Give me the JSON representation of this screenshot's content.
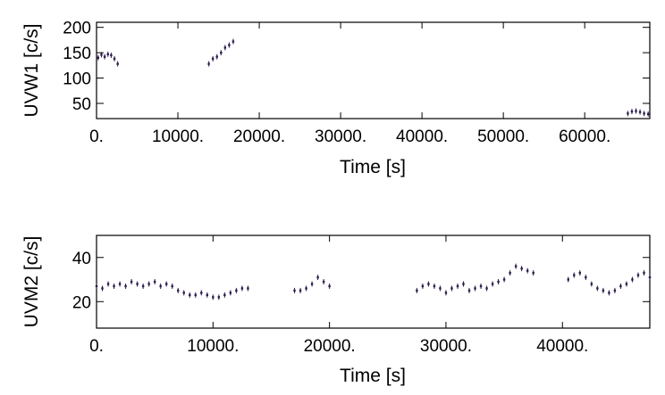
{
  "chart_data": [
    {
      "type": "scatter",
      "title": "",
      "xlabel": "Time [s]",
      "ylabel": "UVW1 [c/s]",
      "xlim": [
        0,
        68000
      ],
      "ylim": [
        20,
        210
      ],
      "grid": false,
      "x_ticks": [
        0,
        10000,
        20000,
        30000,
        40000,
        50000,
        60000
      ],
      "x_tick_labels": [
        "0.",
        "10000.",
        "20000.",
        "30000.",
        "40000.",
        "50000.",
        "60000."
      ],
      "y_ticks": [
        50,
        100,
        150,
        200
      ],
      "y_tick_labels": [
        "50",
        "100",
        "150",
        "200"
      ],
      "segments": [
        {
          "x": [
            200,
            600,
            1000,
            1400,
            1800,
            2200,
            2600
          ],
          "y": [
            140,
            146,
            142,
            147,
            145,
            138,
            128
          ]
        },
        {
          "x": [
            13800,
            14300,
            14800,
            15300,
            15800,
            16300,
            16800
          ],
          "y": [
            128,
            138,
            142,
            150,
            160,
            165,
            172
          ]
        },
        {
          "x": [
            65300,
            65800,
            66300,
            66800,
            67300,
            67800
          ],
          "y": [
            30,
            34,
            35,
            33,
            30,
            29
          ]
        }
      ]
    },
    {
      "type": "scatter",
      "title": "",
      "xlabel": "Time [s]",
      "ylabel": "UVM2 [c/s]",
      "xlim": [
        0,
        47500
      ],
      "ylim": [
        8,
        50
      ],
      "grid": false,
      "x_ticks": [
        0,
        10000,
        20000,
        30000,
        40000
      ],
      "x_tick_labels": [
        "0.",
        "10000.",
        "20000.",
        "30000.",
        "40000."
      ],
      "y_ticks": [
        20,
        40
      ],
      "y_tick_labels": [
        "20",
        "40"
      ],
      "segments": [
        {
          "x": [
            0,
            500,
            1000,
            1500,
            2000,
            2500,
            3000,
            3500,
            4000,
            4500,
            5000,
            5500,
            6000,
            6500,
            7000,
            7500,
            8000,
            8500,
            9000,
            9500,
            10000,
            10500,
            11000,
            11500,
            12000,
            12500,
            13000
          ],
          "y": [
            27,
            26,
            28,
            27,
            28,
            27,
            29,
            28,
            27,
            28,
            29,
            27,
            28,
            27,
            25,
            24,
            23,
            23,
            24,
            23,
            22,
            22,
            23,
            24,
            25,
            26,
            26
          ]
        },
        {
          "x": [
            17000,
            17500,
            18000,
            18500,
            19000,
            19500,
            20000
          ],
          "y": [
            25,
            25,
            26,
            28,
            31,
            29,
            27
          ]
        },
        {
          "x": [
            27500,
            28000,
            28500,
            29000,
            29500,
            30000,
            30500,
            31000,
            31500,
            32000,
            32500,
            33000,
            33500,
            34000,
            34500,
            35000,
            35500,
            36000,
            36500,
            37000,
            37500
          ],
          "y": [
            25,
            27,
            28,
            27,
            26,
            24,
            26,
            27,
            28,
            25,
            26,
            27,
            26,
            28,
            29,
            30,
            33,
            36,
            35,
            34,
            33
          ]
        },
        {
          "x": [
            40500,
            41000,
            41500,
            42000,
            42500,
            43000,
            43500,
            44000,
            44500,
            45000,
            45500,
            46000,
            46500,
            47000,
            47500
          ],
          "y": [
            30,
            32,
            33,
            31,
            28,
            26,
            25,
            24,
            25,
            27,
            28,
            30,
            32,
            33,
            31
          ]
        }
      ]
    }
  ]
}
